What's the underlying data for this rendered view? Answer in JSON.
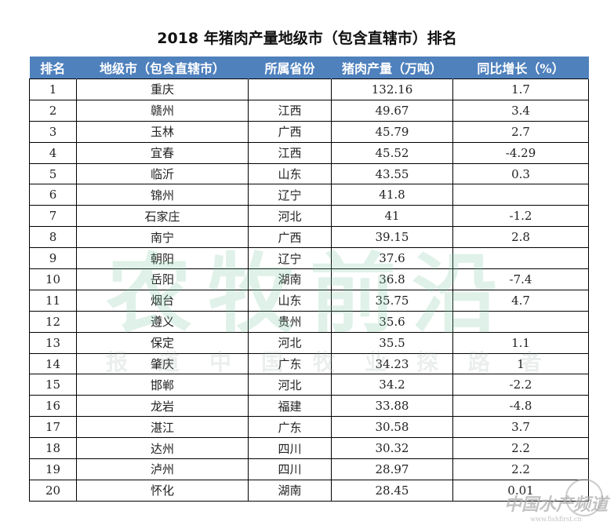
{
  "title": "2018 年猪肉产量地级市（包含直辖市）排名",
  "headers": [
    "排名",
    "地级市（包含直辖市）",
    "所属省份",
    "猪肉产量（万吨）",
    "同比增长（%）"
  ],
  "rows": [
    [
      "1",
      "重庆",
      "",
      "132.16",
      "1.7"
    ],
    [
      "2",
      "赣州",
      "江西",
      "49.67",
      "3.4"
    ],
    [
      "3",
      "玉林",
      "广西",
      "45.79",
      "2.7"
    ],
    [
      "4",
      "宜春",
      "江西",
      "45.52",
      "-4.29"
    ],
    [
      "5",
      "临沂",
      "山东",
      "43.55",
      "0.3"
    ],
    [
      "6",
      "锦州",
      "辽宁",
      "41.8",
      ""
    ],
    [
      "7",
      "石家庄",
      "河北",
      "41",
      "-1.2"
    ],
    [
      "8",
      "南宁",
      "广西",
      "39.15",
      "2.8"
    ],
    [
      "9",
      "朝阳",
      "辽宁",
      "37.6",
      ""
    ],
    [
      "10",
      "岳阳",
      "湖南",
      "36.8",
      "-7.4"
    ],
    [
      "11",
      "烟台",
      "山东",
      "35.75",
      "4.7"
    ],
    [
      "12",
      "遵义",
      "贵州",
      "35.6",
      ""
    ],
    [
      "13",
      "保定",
      "河北",
      "35.5",
      "1.1"
    ],
    [
      "14",
      "肇庆",
      "广东",
      "34.23",
      "1"
    ],
    [
      "15",
      "邯郸",
      "河北",
      "34.2",
      "-2.2"
    ],
    [
      "16",
      "龙岩",
      "福建",
      "33.88",
      "-4.8"
    ],
    [
      "17",
      "湛江",
      "广东",
      "30.58",
      "3.7"
    ],
    [
      "18",
      "达州",
      "四川",
      "30.32",
      "2.2"
    ],
    [
      "19",
      "泸州",
      "四川",
      "28.97",
      "2.2"
    ],
    [
      "20",
      "怀化",
      "湖南",
      "28.45",
      "0.01"
    ]
  ],
  "watermark": {
    "main": "农牧前沿",
    "sub": "报道中国牧业探路者"
  },
  "logo": {
    "text": "中国水产频道",
    "url": "www.fishfirst.cn"
  },
  "colors": {
    "header_bg": "#4f81bd"
  }
}
